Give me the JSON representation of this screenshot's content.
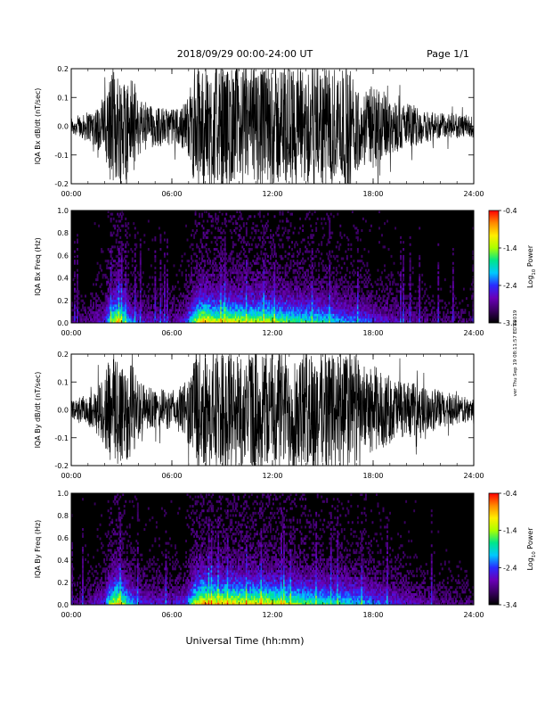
{
  "header": {
    "title": "2018/09/29  00:00-24:00 UT",
    "page": "Page 1/1"
  },
  "side_note": "ver Thu Sep 19 08:11:57 EDT 2019",
  "footer": {
    "xlabel": "Universal Time (hh:mm)"
  },
  "colors": {
    "waveform": "#000000",
    "spectrogram_background": "#000000",
    "colormap": [
      "#000000",
      "#3a0060",
      "#6a00b8",
      "#2a2aff",
      "#00c8ff",
      "#00e68a",
      "#aaff00",
      "#ffee00",
      "#ff8a00",
      "#ff0000"
    ]
  },
  "chart_data": [
    {
      "type": "line",
      "ylabel": "IQA Bx dB/dt (nT/sec)",
      "xlim": [
        0,
        24
      ],
      "ylim": [
        -0.2,
        0.2
      ],
      "xticks": [
        "00:00",
        "06:00",
        "12:00",
        "18:00",
        "24:00"
      ],
      "yticks": [
        "-0.2",
        "-0.1",
        "0.0",
        "0.1",
        "0.2"
      ],
      "envelope": {
        "x_hours": [
          0,
          1,
          2,
          2.3,
          3,
          3.7,
          4,
          5,
          6,
          6.5,
          7,
          7.3,
          7.6,
          8,
          9,
          10,
          11,
          12,
          13,
          14,
          15,
          16,
          16.7,
          17.3,
          18,
          19,
          20,
          21,
          22,
          23,
          24
        ],
        "amplitude": [
          0.03,
          0.05,
          0.1,
          0.2,
          0.2,
          0.16,
          0.1,
          0.07,
          0.06,
          0.07,
          0.1,
          0.2,
          0.21,
          0.21,
          0.21,
          0.21,
          0.21,
          0.21,
          0.21,
          0.21,
          0.21,
          0.21,
          0.21,
          0.12,
          0.15,
          0.1,
          0.08,
          0.06,
          0.05,
          0.04,
          0.04
        ]
      }
    },
    {
      "type": "heatmap",
      "ylabel": "IQA Bx Freq (Hz)",
      "xlim": [
        0,
        24
      ],
      "ylim": [
        0,
        1.0
      ],
      "xticks": [
        "00:00",
        "06:00",
        "12:00",
        "18:00",
        "24:00"
      ],
      "yticks": [
        "0.0",
        "0.2",
        "0.4",
        "0.6",
        "0.8",
        "1.0"
      ],
      "colorbar": {
        "label": "Log10 Power",
        "range": [
          -3.4,
          -0.4
        ],
        "ticks": [
          "-0.4",
          "-1.4",
          "-2.4",
          "-3.4"
        ]
      },
      "activity": {
        "x_hours": [
          0,
          1,
          2,
          2.3,
          2.8,
          3.3,
          4,
          5,
          6,
          6.8,
          7.4,
          7.8,
          8.5,
          9.5,
          10.5,
          11.5,
          12.5,
          13.5,
          14.5,
          15.5,
          16.5,
          17.5,
          18.5,
          19.5,
          20.5,
          22,
          24
        ],
        "level": [
          0.12,
          0.18,
          0.3,
          0.65,
          0.9,
          0.55,
          0.3,
          0.25,
          0.22,
          0.3,
          0.75,
          0.95,
          0.8,
          0.85,
          0.75,
          0.8,
          0.7,
          0.65,
          0.6,
          0.55,
          0.45,
          0.4,
          0.3,
          0.25,
          0.2,
          0.15,
          0.12
        ]
      }
    },
    {
      "type": "line",
      "ylabel": "IQA By dB/dt (nT/sec)",
      "xlim": [
        0,
        24
      ],
      "ylim": [
        -0.2,
        0.2
      ],
      "xticks": [
        "00:00",
        "06:00",
        "12:00",
        "18:00",
        "24:00"
      ],
      "yticks": [
        "-0.2",
        "-0.1",
        "0.0",
        "0.1",
        "0.2"
      ],
      "envelope": {
        "x_hours": [
          0,
          1,
          2,
          2.3,
          3,
          3.7,
          4,
          5,
          6,
          6.5,
          7,
          7.3,
          7.6,
          8,
          9,
          10,
          11,
          12,
          13,
          14,
          15,
          16,
          17,
          17.3,
          18,
          19,
          20,
          21,
          22,
          23,
          24
        ],
        "amplitude": [
          0.03,
          0.05,
          0.12,
          0.21,
          0.21,
          0.17,
          0.1,
          0.07,
          0.07,
          0.08,
          0.12,
          0.21,
          0.21,
          0.21,
          0.21,
          0.21,
          0.21,
          0.21,
          0.21,
          0.21,
          0.21,
          0.21,
          0.21,
          0.12,
          0.16,
          0.12,
          0.1,
          0.08,
          0.07,
          0.05,
          0.04
        ]
      }
    },
    {
      "type": "heatmap",
      "ylabel": "IQA By Freq (Hz)",
      "xlim": [
        0,
        24
      ],
      "ylim": [
        0,
        1.0
      ],
      "xticks": [
        "00:00",
        "06:00",
        "12:00",
        "18:00",
        "24:00"
      ],
      "yticks": [
        "0.0",
        "0.2",
        "0.4",
        "0.6",
        "0.8",
        "1.0"
      ],
      "colorbar": {
        "label": "Log10 Power",
        "range": [
          -3.4,
          -0.4
        ],
        "ticks": [
          "-0.4",
          "-1.4",
          "-2.4",
          "-3.4"
        ]
      },
      "activity": {
        "x_hours": [
          0,
          1,
          2,
          2.3,
          2.8,
          3.3,
          4,
          5,
          6,
          6.8,
          7.4,
          7.8,
          8.5,
          9.5,
          10.5,
          11.5,
          12.5,
          13.5,
          14.5,
          15.5,
          16.5,
          17.5,
          18.5,
          19.5,
          20.5,
          22,
          24
        ],
        "level": [
          0.14,
          0.2,
          0.35,
          0.7,
          0.92,
          0.6,
          0.35,
          0.3,
          0.28,
          0.35,
          0.8,
          0.97,
          0.88,
          0.9,
          0.85,
          0.85,
          0.78,
          0.72,
          0.65,
          0.6,
          0.55,
          0.5,
          0.4,
          0.32,
          0.25,
          0.18,
          0.14
        ]
      }
    }
  ]
}
